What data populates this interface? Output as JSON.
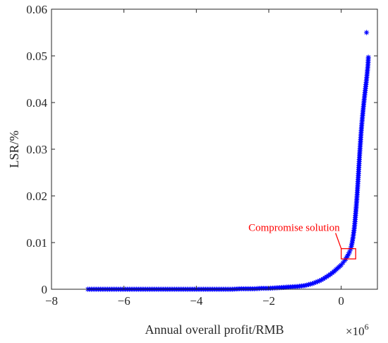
{
  "chart_data": {
    "type": "scatter",
    "title": "",
    "xlabel": "Annual overall profit/RMB",
    "ylabel": "LSR/%",
    "x_exponent_label": "×10",
    "x_exponent_power": "6",
    "xlim": [
      -8,
      1
    ],
    "ylim": [
      0,
      0.06
    ],
    "xticks": [
      -8,
      -6,
      -4,
      -2,
      0
    ],
    "xtick_labels": [
      "−8",
      "−6",
      "−4",
      "−2",
      "0"
    ],
    "yticks": [
      0,
      0.01,
      0.02,
      0.03,
      0.04,
      0.05,
      0.06
    ],
    "ytick_labels": [
      "0",
      "0.01",
      "0.02",
      "0.03",
      "0.04",
      "0.05",
      "0.06"
    ],
    "grid": false,
    "marker": "asterisk",
    "marker_color": "#0000ff",
    "series": [
      {
        "x": [
          -7.0,
          -6.8,
          -6.6,
          -6.4,
          -6.2,
          -6.0,
          -5.8,
          -5.6,
          -5.4,
          -5.2,
          -5.0,
          -4.8,
          -4.6,
          -4.4,
          -4.2,
          -4.0,
          -3.8,
          -3.6,
          -3.4,
          -3.2,
          -3.0,
          -2.8,
          -2.6,
          -2.4,
          -2.2,
          -2.0,
          -1.8,
          -1.6,
          -1.4,
          -1.2,
          -1.0,
          -0.9,
          -0.8,
          -0.7,
          -0.6,
          -0.5,
          -0.4,
          -0.3,
          -0.2,
          -0.1,
          0.0,
          0.05,
          0.1,
          0.15,
          0.2,
          0.23,
          0.26,
          0.28,
          0.3,
          0.32,
          0.34,
          0.36,
          0.37,
          0.38,
          0.39,
          0.4,
          0.41,
          0.42,
          0.43,
          0.44,
          0.45,
          0.46,
          0.47,
          0.48,
          0.49,
          0.5,
          0.51,
          0.52,
          0.53,
          0.54,
          0.55,
          0.57,
          0.59,
          0.61,
          0.63,
          0.65,
          0.67,
          0.69,
          0.7,
          0.72,
          0.74,
          0.75
        ],
        "y": [
          0.0,
          0.0,
          0.0,
          0.0,
          0.0,
          0.0,
          0.0,
          0.0,
          0.0,
          0.0,
          0.0,
          0.0,
          0.0,
          0.0,
          0.0,
          0.0,
          0.0,
          0.0,
          0.0,
          0.0,
          0.0,
          0.0001,
          0.0001,
          0.0001,
          0.0002,
          0.0002,
          0.0003,
          0.0004,
          0.0005,
          0.0006,
          0.0008,
          0.001,
          0.0012,
          0.0015,
          0.0018,
          0.0022,
          0.0027,
          0.0032,
          0.0038,
          0.0045,
          0.0052,
          0.0057,
          0.0062,
          0.0068,
          0.0075,
          0.008,
          0.0086,
          0.0092,
          0.0099,
          0.0108,
          0.0118,
          0.013,
          0.0137,
          0.0145,
          0.0154,
          0.0163,
          0.0172,
          0.0182,
          0.0192,
          0.0203,
          0.0215,
          0.0227,
          0.0239,
          0.0252,
          0.0265,
          0.0278,
          0.029,
          0.0302,
          0.0313,
          0.0325,
          0.0336,
          0.0355,
          0.0372,
          0.0388,
          0.0403,
          0.0417,
          0.043,
          0.0443,
          0.045,
          0.0465,
          0.0482,
          0.0497
        ]
      },
      {
        "x": [
          0.7
        ],
        "y": [
          0.055
        ]
      }
    ],
    "annotation": {
      "text": "Compromise solution",
      "color": "#ff0000",
      "box_x": [
        0.0,
        0.4
      ],
      "box_y": [
        0.0065,
        0.0087
      ]
    }
  }
}
